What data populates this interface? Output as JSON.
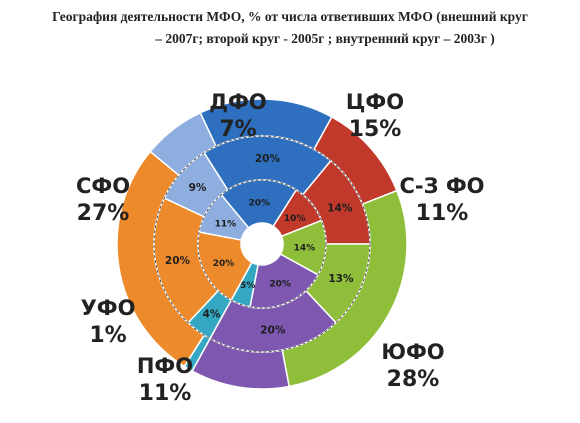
{
  "title": {
    "line1": "География деятельности МФО, % от числа ответивших МФО (внешний круг",
    "line2": "– 2007г; второй круг - 2005г ; внутренний круг – 2003г )"
  },
  "chart_data": {
    "type": "pie",
    "variant": "nested-donut",
    "rings": [
      {
        "name": "2007г",
        "position": "outer"
      },
      {
        "name": "2005г",
        "position": "middle"
      },
      {
        "name": "2003г",
        "position": "inner"
      }
    ],
    "categories": [
      "ЦФО",
      "С-З ФО",
      "ЮФО",
      "ПФО",
      "УФО",
      "СФО",
      "ДФО"
    ],
    "colors": [
      "#2f6fc0",
      "#c0392b",
      "#8fbf3a",
      "#7e57b0",
      "#34a7c2",
      "#ed8a2c",
      "#8eaee0"
    ],
    "series": [
      {
        "name": "2007г",
        "values": [
          15,
          11,
          28,
          11,
          1,
          27,
          7
        ]
      },
      {
        "name": "2005г",
        "values": [
          20,
          14,
          13,
          20,
          4,
          20,
          9
        ]
      },
      {
        "name": "2003г",
        "values": [
          20,
          10,
          14,
          20,
          5,
          20,
          11
        ]
      }
    ],
    "outer_labels": [
      {
        "name": "ЦФО",
        "pct": "15%"
      },
      {
        "name": "С-З ФО",
        "pct": "11%"
      },
      {
        "name": "ЮФО",
        "pct": "28%"
      },
      {
        "name": "ПФО",
        "pct": "11%"
      },
      {
        "name": "УФО",
        "pct": "1%"
      },
      {
        "name": "СФО",
        "pct": "27%"
      },
      {
        "name": "ДФО",
        "pct": "7%"
      }
    ],
    "middle_labels": [
      "20%",
      "14%",
      "13%",
      "20%",
      "4%",
      "20%",
      "9%"
    ],
    "inner_labels": [
      "20%",
      "10%",
      "14%",
      "20%",
      "5%",
      "20%",
      "11%"
    ]
  }
}
